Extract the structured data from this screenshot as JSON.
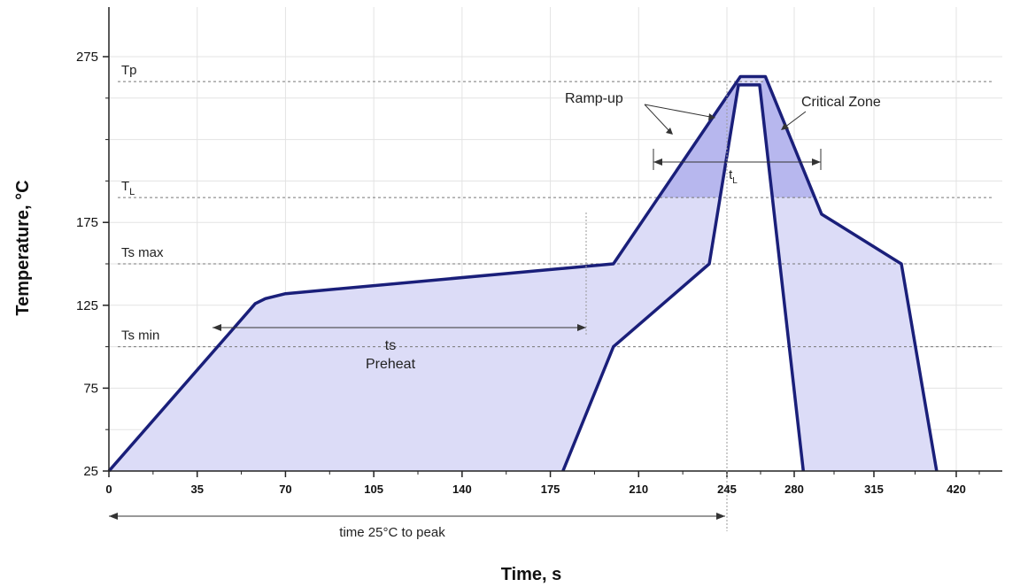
{
  "chart_data": {
    "type": "area",
    "title": "",
    "xlabel": "Time, s",
    "ylabel": "Temperature, °C",
    "xlim": [
      0,
      450
    ],
    "ylim": [
      25,
      295
    ],
    "x_tick_labels": [
      "0",
      "35",
      "70",
      "105",
      "140",
      "175",
      "210",
      "245",
      "280",
      "315",
      "420"
    ],
    "y_ticks": [
      25,
      75,
      125,
      175,
      275
    ],
    "grid": true,
    "reference_lines": [
      {
        "label": "Tp",
        "value": 260
      },
      {
        "label": "T",
        "subscript": "L",
        "value": 190
      },
      {
        "label": "Ts max",
        "value": 150
      },
      {
        "label": "Ts min",
        "value": 100
      }
    ],
    "series": [
      {
        "x": [
          0,
          58,
          62,
          70,
          200,
          252,
          265,
          292,
          350,
          395
        ],
        "y": [
          25,
          126,
          129,
          132,
          150,
          263,
          263,
          180,
          150,
          25
        ]
      },
      {
        "x": [
          180,
          200,
          238,
          251,
          262,
          284
        ],
        "y": [
          25,
          100,
          150,
          258,
          258,
          25
        ]
      }
    ],
    "annotations": {
      "ramp_up": "Ramp-up",
      "critical_zone": "Critical Zone",
      "tl": "t",
      "tl_sub": "L",
      "ts": "ts",
      "preheat": "Preheat",
      "time_to_peak": "time 25°C to peak"
    }
  }
}
